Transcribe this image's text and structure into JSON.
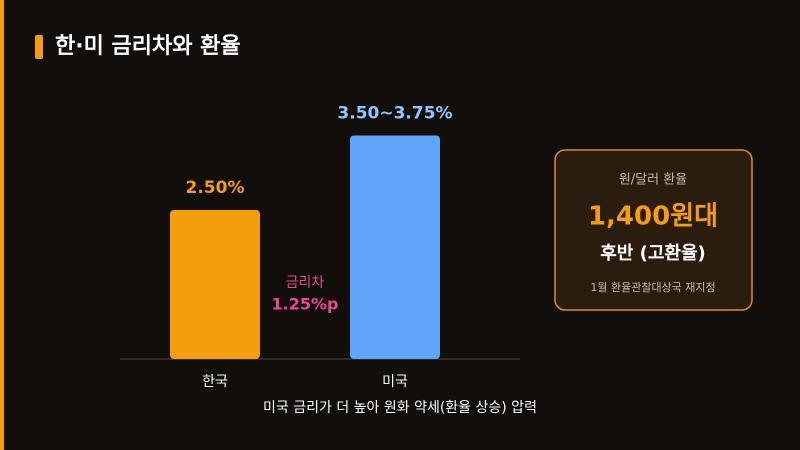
{
  "title": "한·미 금리차와 환율",
  "chart_data": {
    "type": "bar",
    "categories": [
      "한국",
      "미국"
    ],
    "values": [
      2.5,
      3.75
    ],
    "value_labels": [
      "2.50%",
      "3.50~3.75%"
    ],
    "colors": [
      "#f59e0b",
      "#60a5fa"
    ],
    "label_colors": [
      "#f59e0b",
      "#93c5fd"
    ],
    "annotation": {
      "label": "금리차",
      "value": "1.25%p"
    },
    "caption": "미국 금리가 더 높아 원화 약세(환율 상승) 압력"
  },
  "info_box": {
    "label": "원/달러 환율",
    "value": "1,400원대",
    "sub": "후반 (고환율)",
    "note": "1월 환율관찰대상국 재지정"
  }
}
